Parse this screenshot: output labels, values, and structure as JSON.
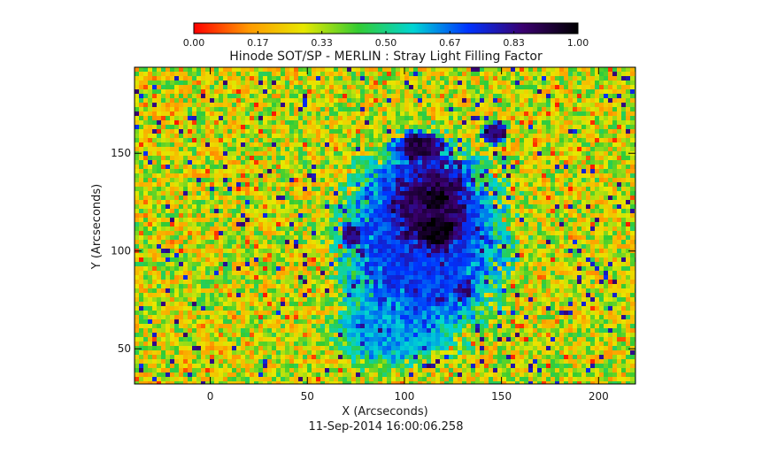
{
  "chart_data": {
    "type": "heatmap",
    "title": "Hinode SOT/SP - MERLIN : Stray Light Filling Factor",
    "xlabel": "X (Arcseconds)",
    "ylabel": "Y (Arcseconds)",
    "xlim": [
      -39,
      219
    ],
    "ylim": [
      32,
      194
    ],
    "x_ticks": [
      0,
      50,
      100,
      150,
      200
    ],
    "y_ticks": [
      50,
      100,
      150
    ],
    "colorbar": {
      "min": 0.0,
      "max": 1.0,
      "ticks": [
        "0.00",
        "0.17",
        "0.33",
        "0.50",
        "0.67",
        "0.83",
        "1.00"
      ],
      "colors": [
        "#ff0000",
        "#ff9900",
        "#e8e800",
        "#33cc33",
        "#00d4d4",
        "#0033ff",
        "#3a006e",
        "#000000"
      ]
    },
    "field": {
      "quiet_sun_fill": 0.3,
      "spots": [
        {
          "name": "umbra-main",
          "x": 117,
          "y": 111,
          "rx": 13,
          "ry": 11,
          "value": 1.0
        },
        {
          "name": "umbra-north",
          "x": 116,
          "y": 127,
          "rx": 11,
          "ry": 9,
          "value": 0.97
        },
        {
          "name": "penumbra-main",
          "x": 113,
          "y": 122,
          "rx": 27,
          "ry": 30,
          "value": 0.88
        },
        {
          "name": "pore-north-a",
          "x": 108,
          "y": 153,
          "rx": 16,
          "ry": 9,
          "value": 0.9
        },
        {
          "name": "pore-north-b",
          "x": 147,
          "y": 160,
          "rx": 8,
          "ry": 6,
          "value": 0.88
        },
        {
          "name": "pore-west",
          "x": 73,
          "y": 108,
          "rx": 7,
          "ry": 7,
          "value": 0.86
        },
        {
          "name": "pore-southeast",
          "x": 131,
          "y": 79,
          "rx": 6,
          "ry": 5,
          "value": 0.85
        },
        {
          "name": "plage",
          "x": 110,
          "y": 105,
          "rx": 48,
          "ry": 58,
          "value": 0.72
        },
        {
          "name": "plage-south",
          "x": 92,
          "y": 60,
          "rx": 32,
          "ry": 22,
          "value": 0.62
        }
      ]
    }
  },
  "footer": {
    "timestamp": "11-Sep-2014 16:00:06.258"
  }
}
